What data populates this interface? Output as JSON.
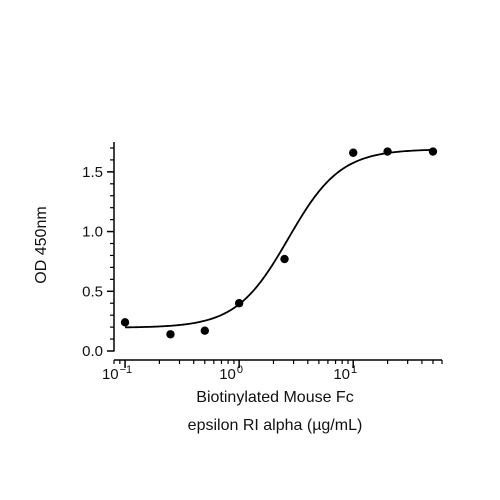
{
  "chart_data": {
    "type": "scatter",
    "xlabel": [
      "Biotinylated Mouse Fc",
      "epsilon RI alpha (µg/mL)"
    ],
    "ylabel": "OD 450nm",
    "x_scale": "log",
    "xlim": [
      0.08,
      60
    ],
    "ylim": [
      0,
      1.75
    ],
    "x_ticks": [
      {
        "base": "10",
        "exp": "−1",
        "value": 0.1
      },
      {
        "base": "10",
        "exp": "0",
        "value": 1
      },
      {
        "base": "10",
        "exp": "1",
        "value": 10
      }
    ],
    "y_ticks": [
      {
        "label": "0.0",
        "value": 0
      },
      {
        "label": "0.5",
        "value": 0.5
      },
      {
        "label": "1.0",
        "value": 1.0
      },
      {
        "label": "1.5",
        "value": 1.5
      }
    ],
    "grid": false,
    "legend": "none",
    "series": [
      {
        "points": [
          {
            "x": 0.1,
            "y": 0.24
          },
          {
            "x": 0.25,
            "y": 0.14
          },
          {
            "x": 0.5,
            "y": 0.17
          },
          {
            "x": 1,
            "y": 0.4
          },
          {
            "x": 2.5,
            "y": 0.77
          },
          {
            "x": 10,
            "y": 1.66
          },
          {
            "x": 20,
            "y": 1.67
          },
          {
            "x": 50,
            "y": 1.67
          }
        ]
      }
    ],
    "fit_curve": {
      "model": "4PL",
      "bottom": 0.195,
      "top": 1.69,
      "ec50": 2.7,
      "hill": 1.9,
      "color": "#000000"
    },
    "point_color": "#000000"
  }
}
